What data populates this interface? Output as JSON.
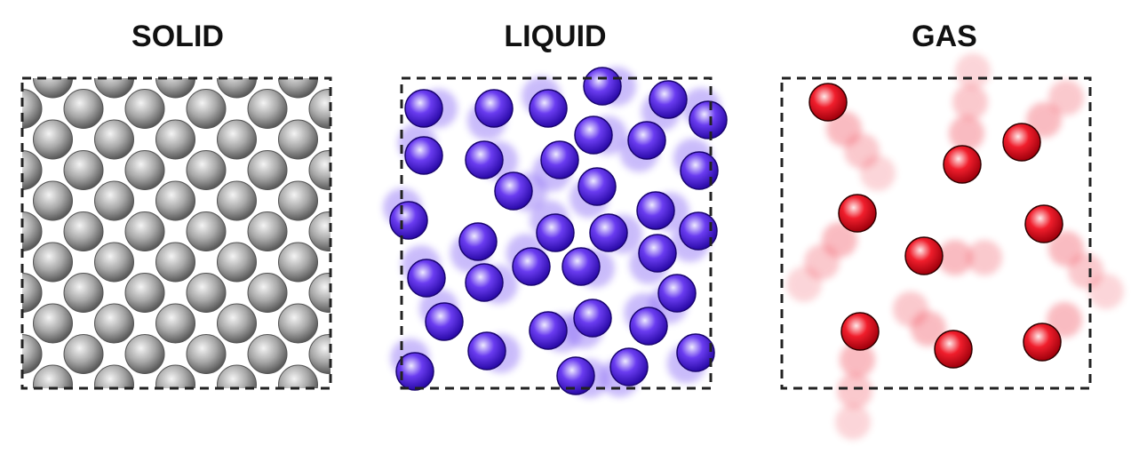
{
  "panels": [
    {
      "label": "SOLID"
    },
    {
      "label": "LIQUID"
    },
    {
      "label": "GAS"
    }
  ]
}
